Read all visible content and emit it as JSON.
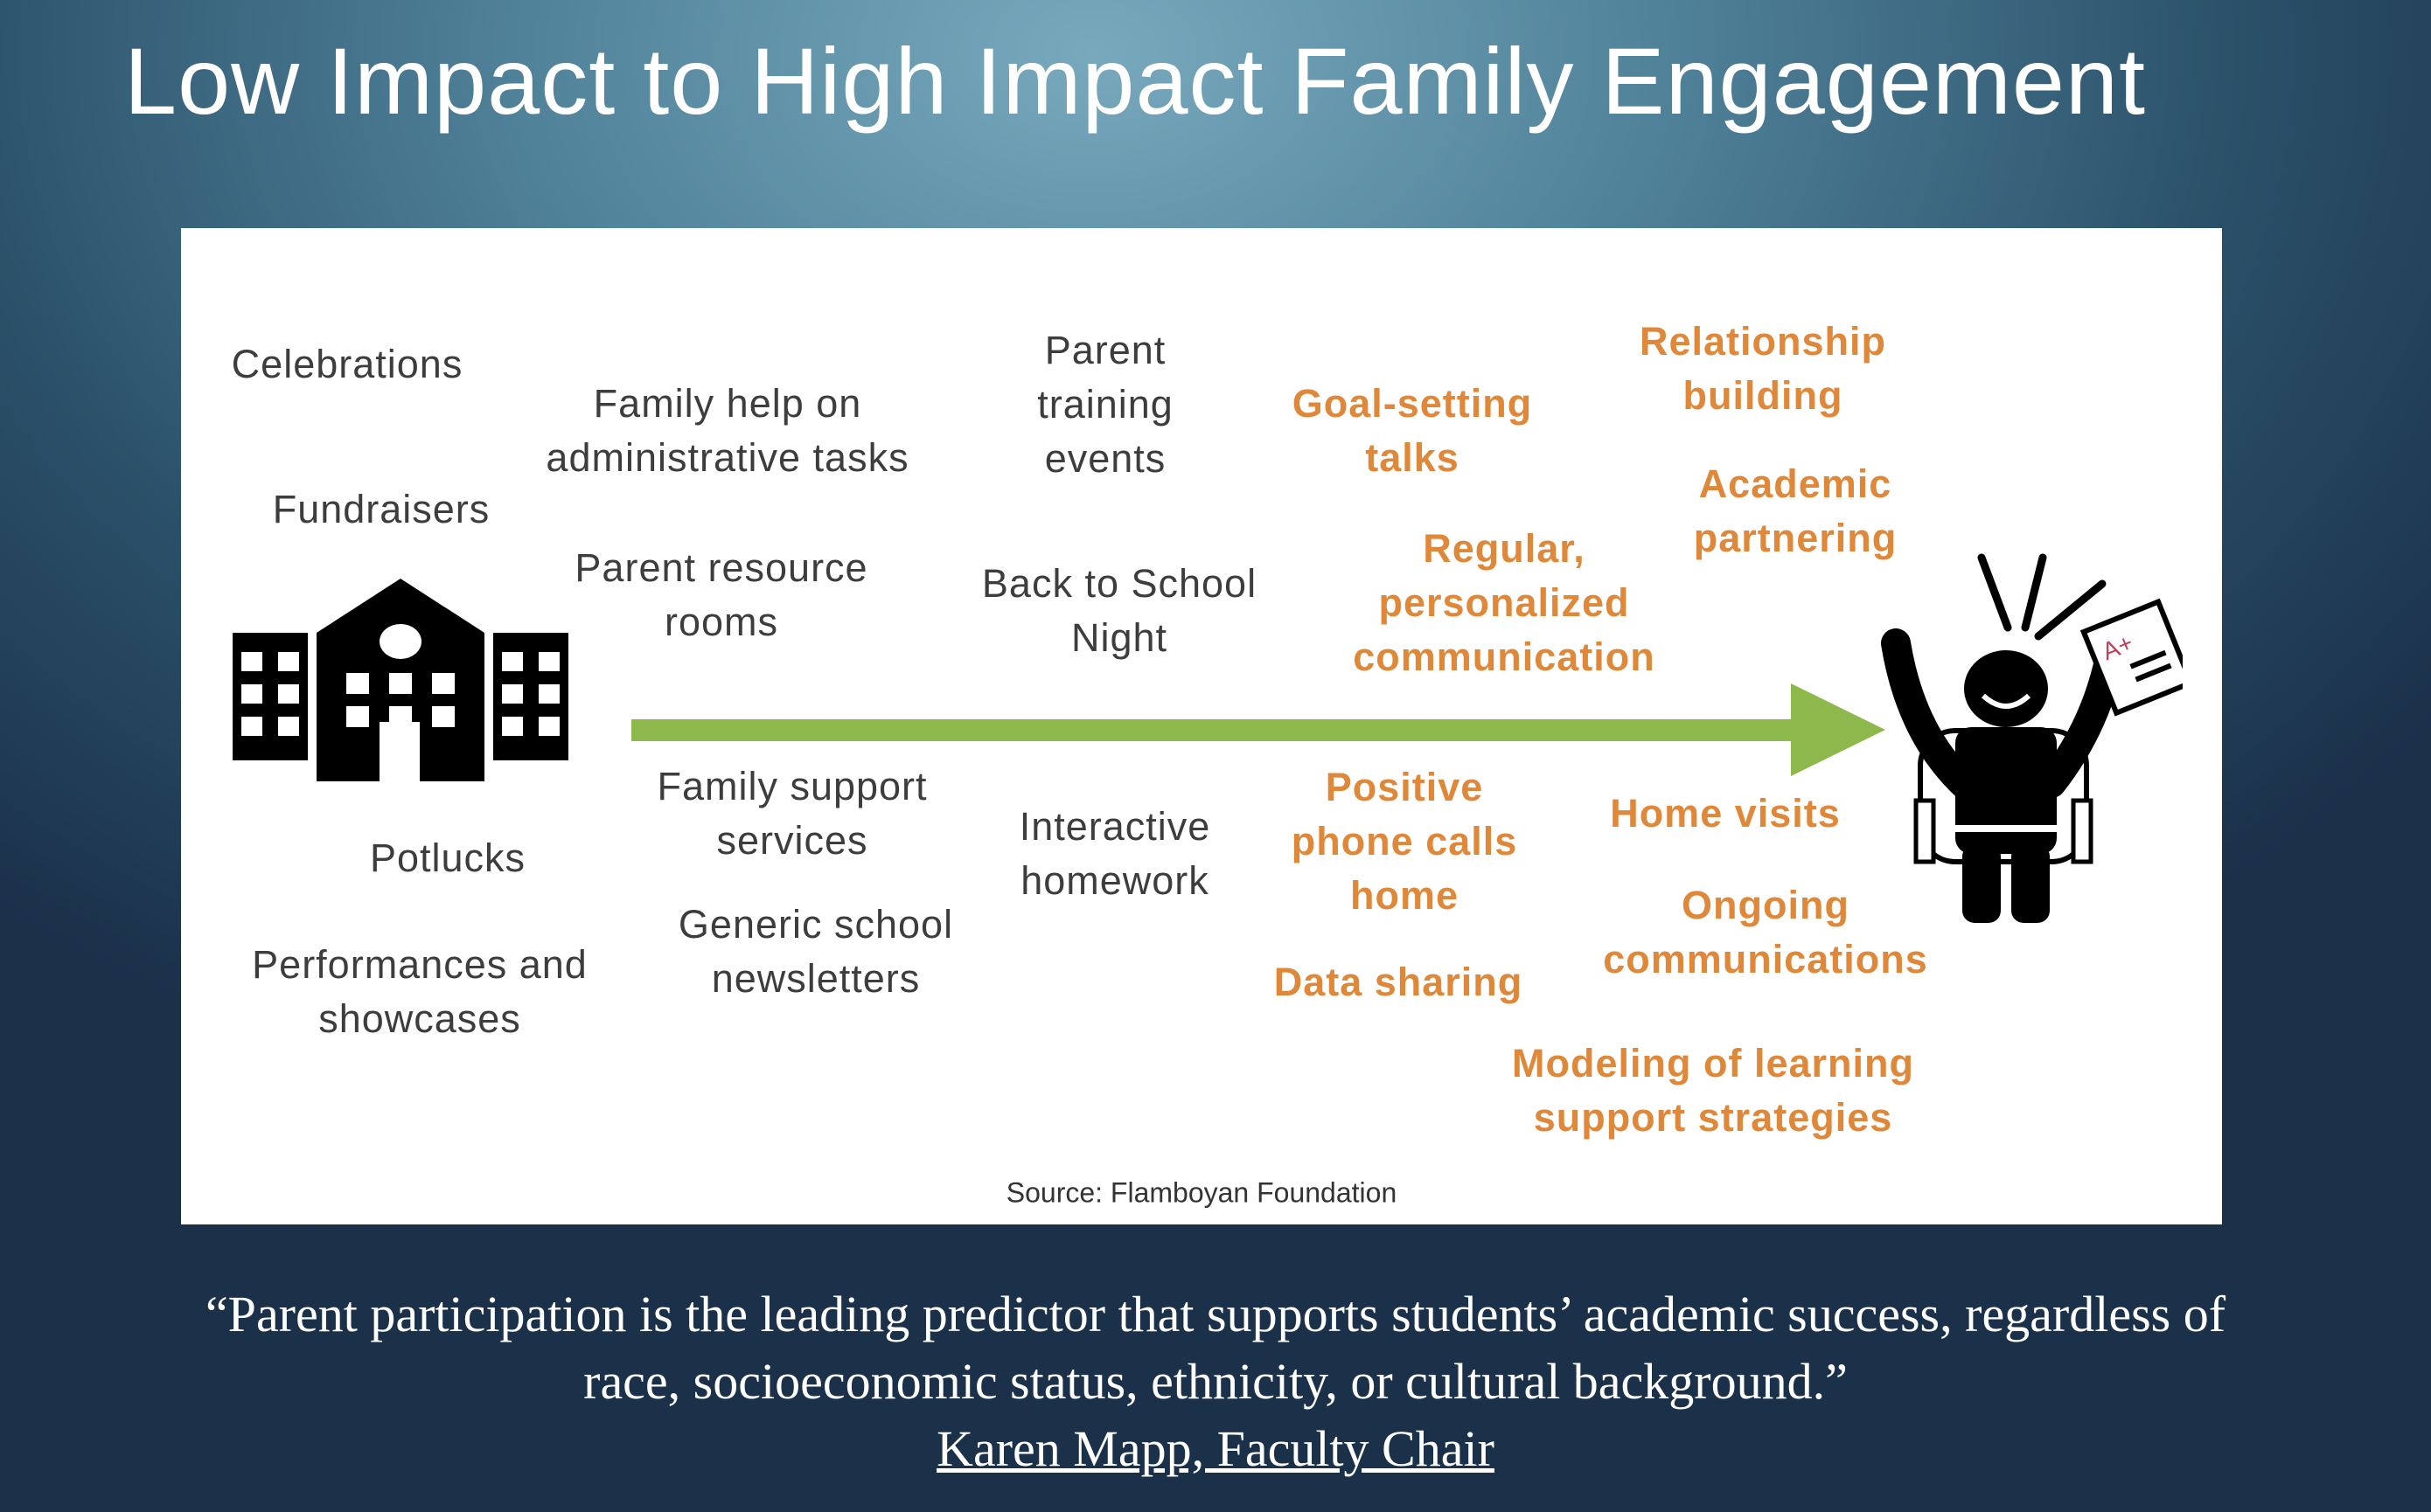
{
  "title": "Low Impact to High Impact Family Engagement",
  "diagram": {
    "low_impact": [
      "Celebrations",
      "Fundraisers",
      "Family help on\nadministrative tasks",
      "Parent resource\nrooms",
      "Parent\ntraining\nevents",
      "Back to School\nNight",
      "Family support\nservices",
      "Potlucks",
      "Performances and\nshowcases",
      "Generic school\nnewsletters",
      "Interactive\nhomework"
    ],
    "high_impact": [
      "Goal-setting\ntalks",
      "Relationship\nbuilding",
      "Academic\npartnering",
      "Regular,\npersonalized\ncommunication",
      "Positive\nphone calls\nhome",
      "Home visits",
      "Ongoing\ncommunications",
      "Data sharing",
      "Modeling of learning\nsupport strategies"
    ],
    "source": "Source: Flamboyan Foundation",
    "icons": {
      "start": "school-building-icon",
      "end": "celebrating-student-icon",
      "grade_on_paper": "A+"
    },
    "colors": {
      "high_impact_text": "#e0883a",
      "low_impact_text": "#3d3d3d",
      "arrow": "#8cb84c"
    }
  },
  "quote": {
    "line1": "“Parent participation is the leading predictor that supports students’ academic success, regardless of",
    "line2": "race, socioeconomic status, ethnicity, or cultural background.”",
    "author": "Karen Mapp, Faculty Chair"
  }
}
